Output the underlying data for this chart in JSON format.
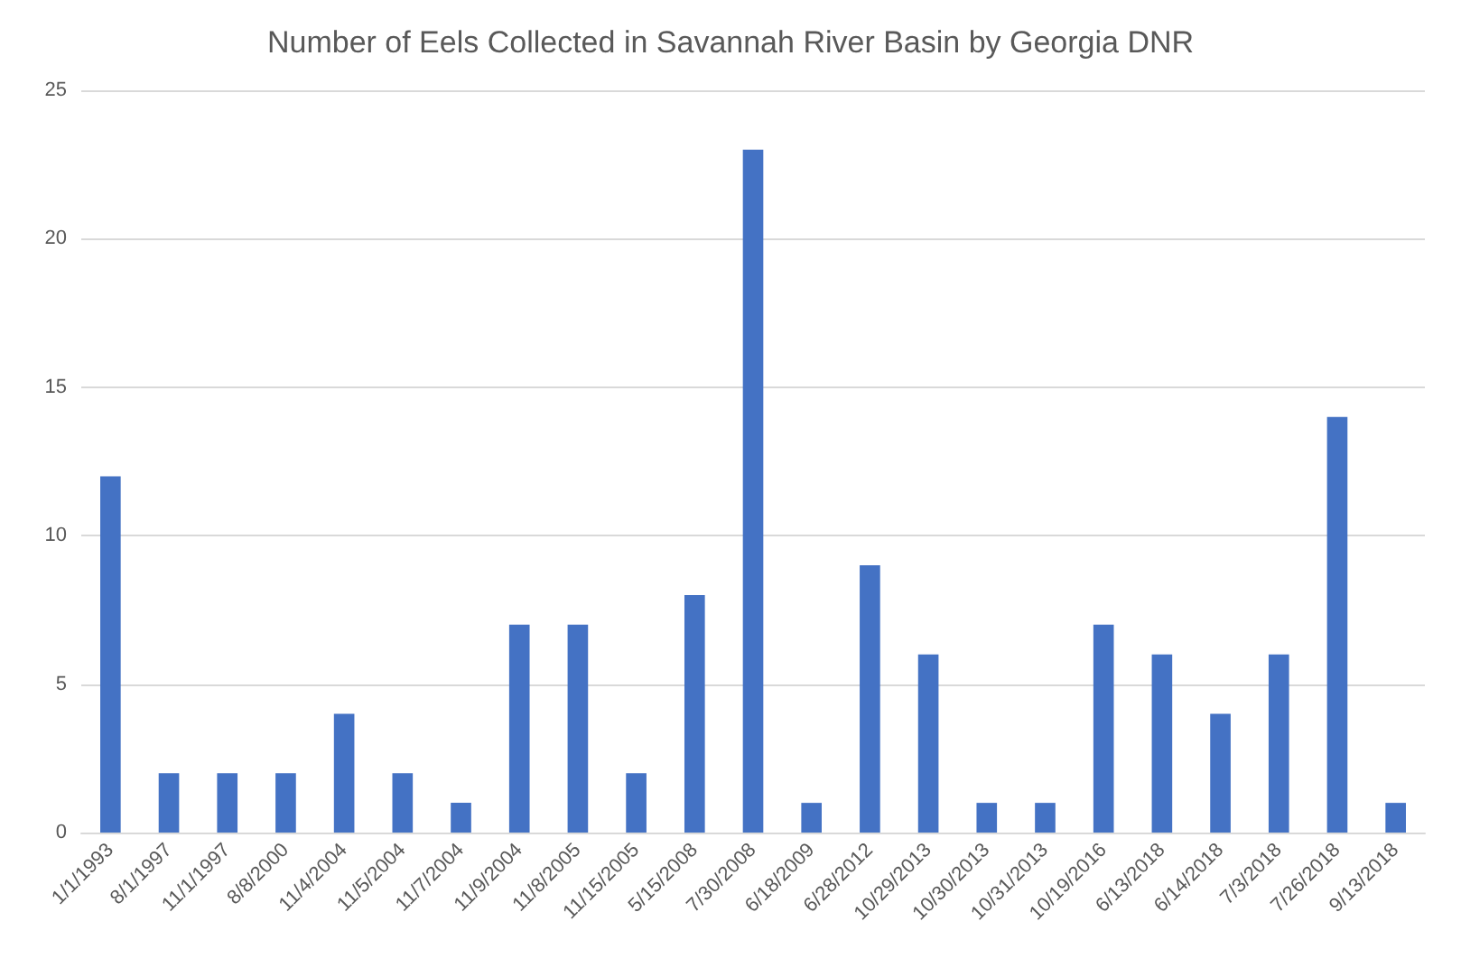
{
  "chart_data": {
    "type": "bar",
    "title": "Number of Eels Collected in Savannah River Basin by Georgia DNR",
    "categories": [
      "1/1/1993",
      "8/1/1997",
      "11/1/1997",
      "8/8/2000",
      "11/4/2004",
      "11/5/2004",
      "11/7/2004",
      "11/9/2004",
      "11/8/2005",
      "11/15/2005",
      "5/15/2008",
      "7/30/2008",
      "6/18/2009",
      "6/28/2012",
      "10/29/2013",
      "10/30/2013",
      "10/31/2013",
      "10/19/2016",
      "6/13/2018",
      "6/14/2018",
      "7/3/2018",
      "7/26/2018",
      "9/13/2018"
    ],
    "values": [
      12,
      2,
      2,
      2,
      4,
      2,
      1,
      7,
      7,
      2,
      8,
      23,
      1,
      9,
      6,
      1,
      1,
      7,
      6,
      4,
      6,
      14,
      1
    ],
    "color": "#4472c4",
    "ylim": [
      0,
      25
    ],
    "yticks": [
      0,
      5,
      10,
      15,
      20,
      25
    ],
    "grid": "y"
  }
}
